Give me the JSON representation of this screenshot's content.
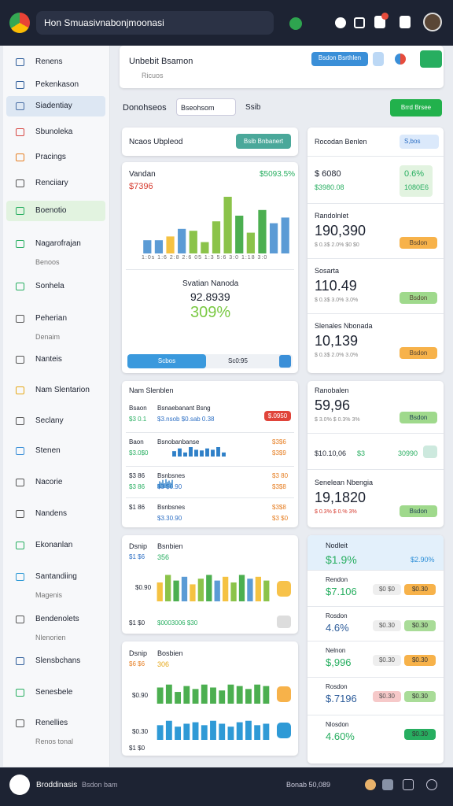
{
  "topbar": {
    "title": "Hon Smuasivnabonjmoonasi"
  },
  "sidebar": {
    "items": [
      {
        "label": "Renens"
      },
      {
        "label": "Pekenkason"
      },
      {
        "label": "Siadentiay"
      },
      {
        "label": "Sbunoleka"
      },
      {
        "label": "Pracings"
      },
      {
        "label": "Renciiary"
      },
      {
        "label": "Boenotio"
      },
      {
        "label": "Nagarofrajan",
        "sub": "Benoos"
      },
      {
        "label": "Sonhela"
      },
      {
        "label": "Peherian",
        "sub": "Denaim"
      },
      {
        "label": "Nanteis"
      },
      {
        "label": "Nam Slentarion"
      },
      {
        "label": "Seclany"
      },
      {
        "label": "Stenen"
      },
      {
        "label": "Nacorie"
      },
      {
        "label": "Nandens"
      },
      {
        "label": "Ekonanlan"
      },
      {
        "label": "Santandiing",
        "sub": "Magenis"
      },
      {
        "label": "Bendenolets",
        "sub": "Nlenorien"
      },
      {
        "label": "Slensbchans"
      },
      {
        "label": "Senesbele"
      },
      {
        "label": "Renellies",
        "sub": "Renos tonal"
      }
    ]
  },
  "search": {
    "title": "Unbebit Bsamon",
    "sub": "Ricuos",
    "button": "Bsdon Bsrthlen"
  },
  "toolbar": {
    "label": "Donohseos",
    "select": "Bseohsom",
    "filter": "Ssib",
    "action": "Brrd Brsee"
  },
  "upload": {
    "title": "Ncaos Ubpleod",
    "button": "Bsib Bnbanert"
  },
  "overview": {
    "title": "Vandan",
    "change": "$5093.5%",
    "value": "$7396",
    "axis": "1:0s 1:6 2:8 2:6 05 1:3 5:6 3:0 1:18 3:0",
    "stat_title": "Svatian Nanoda",
    "stat_value": "92.8939",
    "stat_pct": "309%",
    "slider_a": "Scbos",
    "slider_b": "Sc0:95"
  },
  "charts": [
    {
      "values": [
        14,
        14,
        18,
        26,
        24,
        12,
        34,
        60,
        40,
        22,
        46,
        32,
        38
      ],
      "colors": [
        "#5b9bd5",
        "#5b9bd5",
        "#f5c242",
        "#5b9bd5",
        "#8bc34a",
        "#8bc34a",
        "#8bc34a",
        "#8bc34a",
        "#4caf50",
        "#8bc34a",
        "#4caf50",
        "#5b9bd5",
        "#5b9bd5"
      ],
      "ylim": [
        0,
        60
      ]
    },
    {
      "values": [
        8,
        12,
        6,
        14,
        10,
        9,
        12,
        10,
        14,
        6
      ],
      "colors": [
        "#2f80c8"
      ],
      "ylim": [
        0,
        14
      ]
    },
    {
      "values": [
        6,
        10,
        8,
        12,
        7,
        13,
        9,
        11,
        8,
        12
      ],
      "colors": [
        "#2f80c8"
      ],
      "ylim": [
        0,
        14
      ]
    },
    {
      "values": [
        20,
        28,
        22,
        26,
        18,
        24,
        28,
        22,
        26,
        20,
        28,
        24,
        26,
        22
      ],
      "colors": [
        "#f5c242",
        "#8bc34a",
        "#4caf50",
        "#5b9bd5"
      ],
      "ylim": [
        0,
        30
      ]
    },
    {
      "values": [
        22,
        26,
        16,
        24,
        20,
        26,
        22,
        18,
        26,
        24,
        20,
        26,
        24
      ],
      "colors": [
        "#4caf50"
      ],
      "ylim": [
        0,
        30
      ]
    },
    {
      "values": [
        20,
        26,
        18,
        22,
        24,
        20,
        26,
        22,
        18,
        24,
        26,
        20,
        22
      ],
      "colors": [
        "#2f9ad6"
      ],
      "ylim": [
        0,
        30
      ]
    }
  ],
  "revenue": {
    "title": "Rocodan Benlen",
    "select": "S,bos",
    "a": "$ 6080",
    "a_sub": "$3980.08",
    "b": "0.6%",
    "b_sub": "1080E6",
    "rows": [
      {
        "title": "Randolnlet",
        "value": "190,390",
        "meta": "$ 0.3$ 2.0% $0 $0",
        "button": "Bsdon"
      },
      {
        "title": "Sosarta",
        "value": "110.49",
        "meta": "$ 0.3$ 3.0% 3.0%",
        "button": "Bsdon"
      },
      {
        "title": "Slenales Nbonada",
        "value": "10,139",
        "meta": "$ 0.3$ 2.0% 3.0%",
        "button": "Bsdon"
      }
    ]
  },
  "list": {
    "title": "Nam Slenblen",
    "rows": [
      {
        "a": "Bsaon",
        "b": "$3 0.1",
        "c": "Bsnaebanant Bsng",
        "d": "$3.nsob $0.sab 0.38",
        "e": "$.0950"
      },
      {
        "a": "Baon",
        "b": "$3.0$0",
        "c": "Bsnobanbanse",
        "e": "$3$6",
        "f": "$3$9"
      },
      {
        "a": "$3 86",
        "b": "$3 86",
        "c": "Bsnbsnes",
        "d": "$3 $0.90",
        "e": "$3 80",
        "f": "$3$8"
      },
      {
        "a": "$1 86",
        "c": "Bsnbsnes",
        "d": "$3.30.90",
        "e": "$3$8",
        "f": "$3 $0"
      }
    ]
  },
  "detail": {
    "a_title": "Ranobalen",
    "a_value": "59,96",
    "a_meta": "$ 3.0% $ 0.3% 3%",
    "button": "Bsdon",
    "mid": "$10.10,06",
    "mid_b": "$3",
    "mid_c": "30990",
    "b_title": "Senelean Nbengia",
    "b_value": "19,1820",
    "b_meta": "$ 0.3% $ 0.% 3%"
  },
  "chart_f": {
    "title": "Dsnip",
    "sub": "$1 $6",
    "label": "Bsnbien",
    "value": "356",
    "axis": "$0.90",
    "foot": "$1 $0",
    "foot_b": "$0003006 $30"
  },
  "chart_g": {
    "title": "Dsnip",
    "sub": "$6 $6",
    "label": "Bosbien",
    "value": "306",
    "axis_a": "$0.90",
    "axis_b": "$0.30",
    "foot": "$1 $0"
  },
  "summary": {
    "title": "Nodleit",
    "value": "$1.9%",
    "value_b": "$2.90%",
    "rows": [
      {
        "title": "Rendon",
        "value": "$7.106",
        "b": "$0 $0",
        "c": "$0.30"
      },
      {
        "title": "Rosdon",
        "value": "4.6%",
        "b": "$0.30",
        "c": "$0.30"
      },
      {
        "title": "Nelnon",
        "value": "$,996",
        "b": "$0.30",
        "c": "$0.30"
      },
      {
        "title": "Rosdon",
        "value": "$.7196",
        "b": "$0.30",
        "c": "$0.30"
      },
      {
        "title": "Nlosdon",
        "value": "4.60%",
        "c": "$0.30"
      }
    ]
  },
  "bottombar": {
    "title": "Broddinasis",
    "sub": "Bsdon bam",
    "status": "Bonab 50,089"
  }
}
